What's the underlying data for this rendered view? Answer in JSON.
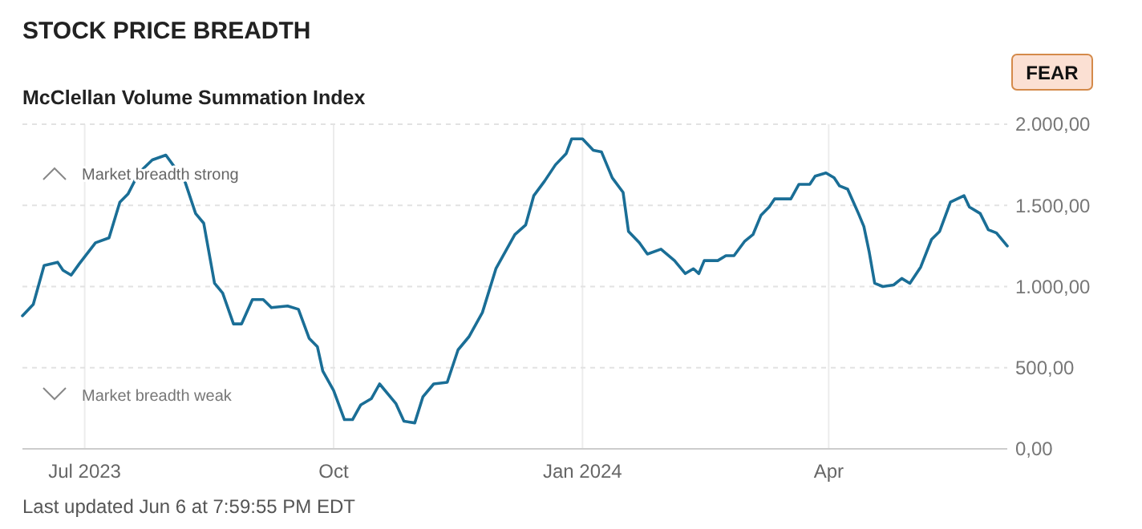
{
  "chart_data": {
    "type": "line",
    "title": "STOCK PRICE BREADTH",
    "subtitle": "McClellan Volume Summation Index",
    "annotations": [
      "FEAR",
      "Market breadth strong",
      "Market breadth weak",
      "Last updated Jun 6 at 7:59:55 PM EDT"
    ],
    "xlim": [
      "2023-06-08",
      "2024-06-06"
    ],
    "xticks": [
      {
        "value": "2023-07-01",
        "label": "Jul 2023"
      },
      {
        "value": "2023-10-01",
        "label": "Oct"
      },
      {
        "value": "2024-01-01",
        "label": "Jan 2024"
      },
      {
        "value": "2024-04-01",
        "label": "Apr"
      }
    ],
    "ylim": [
      0,
      2000
    ],
    "yticks": [
      {
        "value": 0,
        "label": "0,00"
      },
      {
        "value": 500,
        "label": "500,00"
      },
      {
        "value": 1000,
        "label": "1.000,00"
      },
      {
        "value": 1500,
        "label": "1.500,00"
      },
      {
        "value": 2000,
        "label": "2.000,00"
      }
    ],
    "grid": true,
    "marker": "none",
    "line_style": "solid",
    "x": [
      "2023-06-08",
      "2023-06-12",
      "2023-06-16",
      "2023-06-21",
      "2023-06-23",
      "2023-06-26",
      "2023-06-29",
      "2023-07-05",
      "2023-07-10",
      "2023-07-14",
      "2023-07-17",
      "2023-07-21",
      "2023-07-26",
      "2023-07-31",
      "2023-08-07",
      "2023-08-11",
      "2023-08-14",
      "2023-08-18",
      "2023-08-21",
      "2023-08-25",
      "2023-08-28",
      "2023-09-01",
      "2023-09-05",
      "2023-09-08",
      "2023-09-14",
      "2023-09-18",
      "2023-09-22",
      "2023-09-25",
      "2023-09-27",
      "2023-10-01",
      "2023-10-05",
      "2023-10-08",
      "2023-10-11",
      "2023-10-15",
      "2023-10-18",
      "2023-10-24",
      "2023-10-27",
      "2023-10-31",
      "2023-11-03",
      "2023-11-07",
      "2023-11-12",
      "2023-11-16",
      "2023-11-20",
      "2023-11-25",
      "2023-11-30",
      "2023-12-07",
      "2023-12-11",
      "2023-12-14",
      "2023-12-18",
      "2023-12-22",
      "2023-12-26",
      "2023-12-28",
      "2024-01-01",
      "2024-01-05",
      "2024-01-08",
      "2024-01-12",
      "2024-01-16",
      "2024-01-18",
      "2024-01-22",
      "2024-01-25",
      "2024-01-30",
      "2024-02-04",
      "2024-02-08",
      "2024-02-11",
      "2024-02-13",
      "2024-02-15",
      "2024-02-20",
      "2024-02-23",
      "2024-02-26",
      "2024-03-01",
      "2024-03-04",
      "2024-03-07",
      "2024-03-10",
      "2024-03-12",
      "2024-03-18",
      "2024-03-21",
      "2024-03-25",
      "2024-03-27",
      "2024-03-31",
      "2024-04-03",
      "2024-04-05",
      "2024-04-08",
      "2024-04-12",
      "2024-04-14",
      "2024-04-16",
      "2024-04-18",
      "2024-04-21",
      "2024-04-25",
      "2024-04-28",
      "2024-05-01",
      "2024-05-05",
      "2024-05-09",
      "2024-05-12",
      "2024-05-16",
      "2024-05-21",
      "2024-05-23",
      "2024-05-27",
      "2024-05-30",
      "2024-06-02",
      "2024-06-06"
    ],
    "series": [
      {
        "color": "#1a6e96",
        "values": [
          820,
          890,
          1130,
          1150,
          1100,
          1070,
          1140,
          1270,
          1300,
          1520,
          1570,
          1700,
          1780,
          1810,
          1650,
          1450,
          1390,
          1020,
          960,
          770,
          770,
          920,
          920,
          870,
          880,
          860,
          680,
          630,
          480,
          360,
          180,
          180,
          270,
          310,
          400,
          280,
          170,
          160,
          320,
          400,
          410,
          610,
          690,
          840,
          1110,
          1320,
          1380,
          1560,
          1650,
          1750,
          1820,
          1910,
          1910,
          1840,
          1830,
          1670,
          1580,
          1340,
          1270,
          1200,
          1230,
          1160,
          1080,
          1110,
          1080,
          1160,
          1160,
          1190,
          1190,
          1280,
          1320,
          1440,
          1490,
          1540,
          1540,
          1630,
          1630,
          1680,
          1700,
          1670,
          1620,
          1600,
          1450,
          1370,
          1210,
          1020,
          1000,
          1010,
          1050,
          1020,
          1120,
          1290,
          1340,
          1520,
          1560,
          1490,
          1450,
          1350,
          1330,
          1250
        ]
      }
    ]
  }
}
